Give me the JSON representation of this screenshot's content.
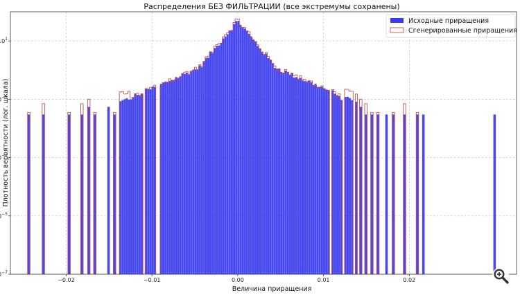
{
  "chart_data": {
    "type": "bar",
    "title": "Распределения БЕЗ ФИЛЬТРАЦИИ (все экстремумы сохранены)",
    "xlabel": "Величина приращения",
    "ylabel": "Плотность вероятности (лог. шкала)",
    "xlim": [
      -0.0265,
      0.0325
    ],
    "ylim_exponent": [
      -7,
      2
    ],
    "yscale": "log",
    "grid": true,
    "legend_position": "top-right",
    "x_ticks": [
      {
        "value": -0.02,
        "label": "−0.02"
      },
      {
        "value": -0.01,
        "label": "−0.01"
      },
      {
        "value": 0.0,
        "label": "0.00"
      },
      {
        "value": 0.01,
        "label": "0.01"
      },
      {
        "value": 0.02,
        "label": "0.02"
      }
    ],
    "y_ticks": [
      {
        "exponent": 1,
        "base": "10",
        "power": "1"
      },
      {
        "exponent": -1,
        "base": "10",
        "power": "−1"
      },
      {
        "exponent": -3,
        "base": "10",
        "power": "−3"
      },
      {
        "exponent": -5,
        "base": "10",
        "power": "−5"
      },
      {
        "exponent": -7,
        "base": "10",
        "power": "−7"
      }
    ],
    "bin_width": 0.00025,
    "series": [
      {
        "name": "Исходные приращения",
        "color": "#3a3af0",
        "style": "filled"
      },
      {
        "name": "Сгенерированные приращения",
        "color": "#c0504d",
        "style": "step"
      }
    ],
    "peak_density": 50,
    "core_range": [
      -0.0138,
      0.0138
    ],
    "extreme_bins": [
      {
        "x": -0.0245,
        "orig": 0.03,
        "gen": 0.035
      },
      {
        "x": -0.0228,
        "orig": 0.03,
        "gen": 0.07
      },
      {
        "x": -0.0198,
        "orig": 0.03,
        "gen": 0.035
      },
      {
        "x": -0.0183,
        "orig": 0.03,
        "gen": 0.07
      },
      {
        "x": -0.0175,
        "orig": 0.055,
        "gen": 0.1
      },
      {
        "x": -0.0168,
        "orig": 0.03,
        "gen": 0.035
      },
      {
        "x": -0.0152,
        "orig": 0.055,
        "gen": null
      },
      {
        "x": -0.0145,
        "orig": 0.03,
        "gen": 0.035
      },
      {
        "x": 0.0142,
        "orig": 0.055,
        "gen": 0.1
      },
      {
        "x": 0.0148,
        "orig": 0.03,
        "gen": 0.07
      },
      {
        "x": 0.0155,
        "orig": 0.03,
        "gen": 0.035
      },
      {
        "x": 0.0162,
        "orig": 0.03,
        "gen": 0.035
      },
      {
        "x": 0.0172,
        "orig": 0.03,
        "gen": null
      },
      {
        "x": 0.018,
        "orig": 0.03,
        "gen": 0.035
      },
      {
        "x": 0.0193,
        "orig": 0.03,
        "gen": 0.07
      },
      {
        "x": 0.0208,
        "orig": 0.03,
        "gen": 0.035
      },
      {
        "x": 0.0215,
        "orig": 0.03,
        "gen": null
      },
      {
        "x": 0.0298,
        "orig": 0.03,
        "gen": null
      }
    ]
  },
  "toolbar": {
    "zoom_icon": "magnifier-zoom-icon"
  }
}
